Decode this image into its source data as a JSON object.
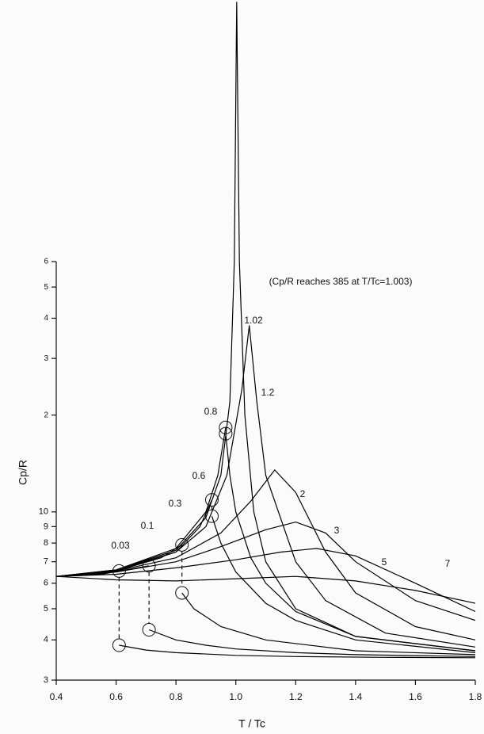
{
  "chart_data": {
    "type": "line",
    "yscale": "log",
    "grid": false,
    "annotations": [
      "(Cp/R reaches 385 at T/Tc=1.003)"
    ],
    "xlabel": "T / Tc",
    "ylabel": "Cp/R",
    "xlim": [
      0.4,
      1.8
    ],
    "ylim": [
      3,
      60
    ],
    "xticks": [
      0.4,
      0.6,
      0.8,
      {
        "value": 1,
        "label": "1.0"
      },
      1.2,
      1.4,
      1.6,
      1.8
    ],
    "yticks": [
      3,
      4,
      5,
      6,
      7,
      8,
      9,
      10,
      {
        "value": 20,
        "label": "2"
      },
      {
        "value": 30,
        "label": "3"
      },
      {
        "value": 40,
        "label": "4"
      },
      {
        "value": 50,
        "label": "5"
      },
      {
        "value": 60,
        "label": "6"
      }
    ],
    "series": [
      {
        "name": "0.03",
        "color": "#000000",
        "x": [
          0.4,
          0.5,
          0.61,
          null,
          0.61,
          0.7,
          0.8,
          1.0,
          1.2,
          1.5,
          1.8
        ],
        "values": [
          6.3,
          6.35,
          6.55,
          null,
          3.85,
          3.72,
          3.65,
          3.58,
          3.55,
          3.53,
          3.52
        ]
      },
      {
        "name": "0.1",
        "color": "#000000",
        "x": [
          0.4,
          0.55,
          0.71,
          null,
          0.71,
          0.8,
          0.9,
          1.0,
          1.2,
          1.4,
          1.8
        ],
        "values": [
          6.3,
          6.4,
          6.8,
          null,
          4.3,
          4.0,
          3.85,
          3.75,
          3.65,
          3.6,
          3.55
        ]
      },
      {
        "name": "0.3",
        "color": "#000000",
        "x": [
          0.4,
          0.6,
          0.75,
          0.82,
          null,
          0.82,
          0.86,
          0.95,
          1.1,
          1.4,
          1.8
        ],
        "values": [
          6.3,
          6.55,
          7.2,
          7.9,
          null,
          5.6,
          5.0,
          4.4,
          4.0,
          3.7,
          3.6
        ]
      },
      {
        "name": "0.6",
        "color": "#000000",
        "x": [
          0.4,
          0.6,
          0.8,
          0.88,
          0.92,
          null,
          0.92,
          0.95,
          1.0,
          1.1,
          1.2,
          1.4,
          1.8
        ],
        "values": [
          6.3,
          6.55,
          7.5,
          9.0,
          10.9,
          null,
          9.7,
          8.0,
          6.5,
          5.2,
          4.6,
          4.0,
          3.65
        ]
      },
      {
        "name": "0.8",
        "color": "#000000",
        "x": [
          0.4,
          0.6,
          0.8,
          0.9,
          0.94,
          0.966,
          null,
          0.966,
          0.98,
          1.0,
          1.05,
          1.1,
          1.2,
          1.4,
          1.8
        ],
        "values": [
          6.3,
          6.6,
          7.7,
          10,
          13,
          18.3,
          null,
          17.5,
          13,
          10,
          7.2,
          6.0,
          4.9,
          4.1,
          3.7
        ]
      },
      {
        "name": "1.02",
        "color": "#000000",
        "x": [
          0.4,
          0.6,
          0.8,
          0.9,
          0.95,
          0.98,
          0.995,
          1.003,
          1.012,
          1.03,
          1.06,
          1.1,
          1.2,
          1.4,
          1.8
        ],
        "values": [
          6.3,
          6.6,
          7.6,
          9.6,
          13,
          22,
          60,
          385,
          60,
          20,
          10,
          7,
          5,
          4.1,
          3.7
        ]
      },
      {
        "name": "1.2",
        "color": "#000000",
        "x": [
          0.4,
          0.6,
          0.8,
          0.9,
          0.97,
          1.02,
          1.045,
          1.07,
          1.1,
          1.2,
          1.3,
          1.5,
          1.8
        ],
        "values": [
          6.3,
          6.6,
          7.5,
          9.0,
          13,
          24,
          38,
          22,
          13,
          7,
          5.3,
          4.2,
          3.8
        ]
      },
      {
        "name": "2",
        "color": "#000000",
        "x": [
          0.4,
          0.6,
          0.8,
          0.95,
          1.05,
          1.13,
          1.2,
          1.3,
          1.4,
          1.6,
          1.8
        ],
        "values": [
          6.3,
          6.55,
          7.2,
          8.6,
          10.8,
          13.5,
          11.5,
          7.5,
          5.6,
          4.4,
          4.0
        ]
      },
      {
        "name": "3",
        "color": "#000000",
        "x": [
          0.4,
          0.6,
          0.8,
          0.95,
          1.1,
          1.2,
          1.3,
          1.4,
          1.6,
          1.8
        ],
        "values": [
          6.3,
          6.5,
          7.0,
          7.8,
          8.8,
          9.3,
          8.6,
          7.0,
          5.3,
          4.6
        ]
      },
      {
        "name": "5",
        "color": "#000000",
        "x": [
          0.4,
          0.6,
          0.8,
          1.0,
          1.15,
          1.27,
          1.4,
          1.6,
          1.8
        ],
        "values": [
          6.3,
          6.4,
          6.7,
          7.1,
          7.5,
          7.7,
          7.3,
          6.0,
          4.9
        ]
      },
      {
        "name": "7",
        "color": "#000000",
        "x": [
          0.4,
          0.6,
          0.8,
          1.0,
          1.2,
          1.4,
          1.6,
          1.8
        ],
        "values": [
          6.3,
          6.15,
          6.1,
          6.2,
          6.3,
          6.1,
          5.7,
          5.2
        ]
      }
    ]
  }
}
